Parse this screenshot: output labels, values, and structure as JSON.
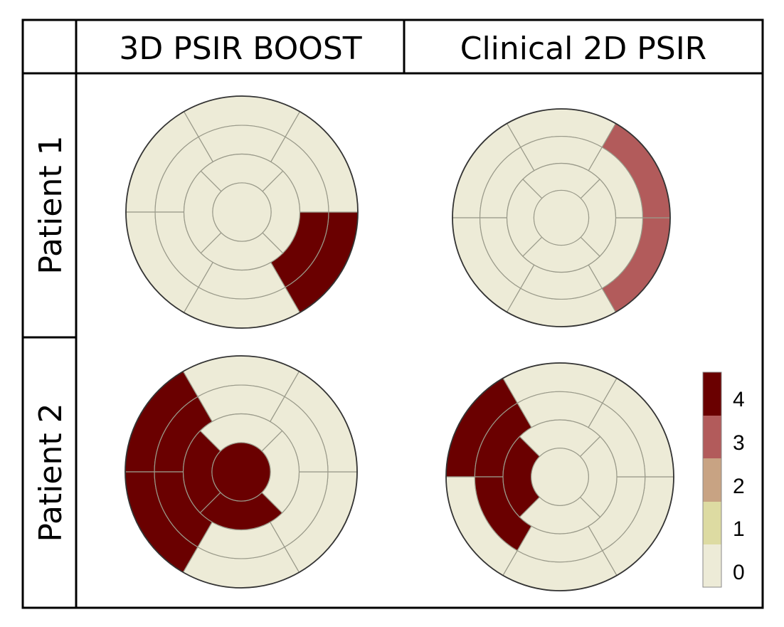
{
  "header": {
    "col1": "3D PSIR BOOST",
    "col2": "Clinical 2D PSIR"
  },
  "rows": {
    "row1": "Patient 1",
    "row2": "Patient 2"
  },
  "legend": {
    "labels": [
      "4",
      "3",
      "2",
      "1",
      "0"
    ],
    "colors": {
      "4": "#6a0000",
      "3": "#b25b5b",
      "2": "#c8a383",
      "1": "#dddba2",
      "0": "#edebd7"
    }
  },
  "bullseyes": {
    "p1_boost": {
      "basal": [
        0,
        0,
        0,
        0,
        4,
        0
      ],
      "mid": [
        0,
        0,
        0,
        0,
        4,
        0
      ],
      "apical": [
        0,
        0,
        0,
        0
      ],
      "apex": 0
    },
    "p1_clinical": {
      "basal": [
        0,
        0,
        0,
        0,
        3,
        3
      ],
      "mid": [
        0,
        0,
        0,
        0,
        0,
        0
      ],
      "apical": [
        0,
        0,
        0,
        0
      ],
      "apex": 0
    },
    "p2_boost": {
      "basal": [
        0,
        4,
        4,
        0,
        0,
        0
      ],
      "mid": [
        0,
        4,
        4,
        0,
        0,
        0
      ],
      "apical": [
        0,
        4,
        4,
        0
      ],
      "apex": 4
    },
    "p2_clinical": {
      "basal": [
        0,
        4,
        0,
        0,
        0,
        0
      ],
      "mid": [
        0,
        4,
        4,
        0,
        0,
        0
      ],
      "apical": [
        0,
        4,
        0,
        0
      ],
      "apex": 0
    }
  }
}
